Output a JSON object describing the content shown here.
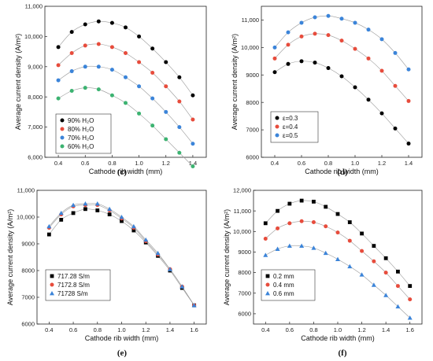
{
  "chart_data": [
    {
      "panel": "(c)",
      "type": "scatter",
      "xlabel": "Cathode rib width (mm)",
      "ylabel": "Average current density (A/m²)",
      "xlim": [
        0.3,
        1.5
      ],
      "ylim": [
        6000,
        11000
      ],
      "xticks": [
        "0.4",
        "0.6",
        "0.8",
        "1.0",
        "1.2",
        "1.4"
      ],
      "yticks": [
        "6,000",
        "7,000",
        "8,000",
        "9,000",
        "10,000",
        "11,000"
      ],
      "legend_position": "bottom-left",
      "x": [
        0.4,
        0.5,
        0.6,
        0.7,
        0.8,
        0.9,
        1.0,
        1.1,
        1.2,
        1.3,
        1.4
      ],
      "series": [
        {
          "name": "90% H₂O",
          "color": "#000000",
          "marker": "circle",
          "values": [
            9650,
            10150,
            10400,
            10500,
            10450,
            10300,
            10000,
            9600,
            9150,
            8650,
            8050
          ]
        },
        {
          "name": "80% H₂O",
          "color": "#e74c3c",
          "marker": "circle",
          "values": [
            9050,
            9450,
            9700,
            9750,
            9650,
            9450,
            9150,
            8800,
            8350,
            7850,
            7250
          ]
        },
        {
          "name": "70% H₂O",
          "color": "#3b84d9",
          "marker": "circle",
          "values": [
            8550,
            8850,
            9000,
            9000,
            8900,
            8650,
            8350,
            7950,
            7500,
            7000,
            6450
          ]
        },
        {
          "name": "60% H₂O",
          "color": "#3cb371",
          "marker": "circle",
          "values": [
            7950,
            8200,
            8300,
            8250,
            8050,
            7800,
            7450,
            7050,
            6600,
            6150,
            5700
          ]
        }
      ]
    },
    {
      "panel": "(d)",
      "type": "scatter",
      "xlabel": "Cathode rib width (mm)",
      "ylabel": "Average current density (A/m²)",
      "xlim": [
        0.3,
        1.5
      ],
      "ylim": [
        6000,
        11500
      ],
      "xticks": [
        "0.4",
        "0.6",
        "0.8",
        "1.0",
        "1.2",
        "1.4"
      ],
      "yticks": [
        "6000",
        "7000",
        "8000",
        "9000",
        "10,000",
        "11,000"
      ],
      "legend_position": "bottom-left",
      "x": [
        0.4,
        0.5,
        0.6,
        0.7,
        0.8,
        0.9,
        1.0,
        1.1,
        1.2,
        1.3,
        1.4
      ],
      "series": [
        {
          "name": "ε=0.3",
          "color": "#000000",
          "marker": "circle",
          "values": [
            9100,
            9400,
            9500,
            9450,
            9250,
            8950,
            8550,
            8100,
            7600,
            7050,
            6500
          ]
        },
        {
          "name": "ε=0.4",
          "color": "#e74c3c",
          "marker": "circle",
          "values": [
            9600,
            10100,
            10400,
            10500,
            10450,
            10250,
            9950,
            9600,
            9150,
            8600,
            8050
          ]
        },
        {
          "name": "ε=0.5",
          "color": "#3b84d9",
          "marker": "circle",
          "values": [
            10000,
            10550,
            10900,
            11100,
            11150,
            11050,
            10900,
            10650,
            10300,
            9800,
            9200
          ]
        }
      ]
    },
    {
      "panel": "(e)",
      "type": "scatter",
      "xlabel": "Cathode rib width (mm)",
      "ylabel": "Average current density (A/m²)",
      "xlim": [
        0.3,
        1.7
      ],
      "ylim": [
        6000,
        11000
      ],
      "xticks": [
        "0.4",
        "0.6",
        "0.8",
        "1.0",
        "1.2",
        "1.4",
        "1.6"
      ],
      "yticks": [
        "6000",
        "7000",
        "8000",
        "9000",
        "10,000",
        "11,000"
      ],
      "legend_position": "bottom-left",
      "x": [
        0.4,
        0.5,
        0.6,
        0.7,
        0.8,
        0.9,
        1.0,
        1.1,
        1.2,
        1.3,
        1.4,
        1.5,
        1.6
      ],
      "series": [
        {
          "name": "717.28 S/m",
          "color": "#000000",
          "marker": "square",
          "values": [
            9350,
            9900,
            10150,
            10300,
            10250,
            10100,
            9850,
            9500,
            9050,
            8550,
            8000,
            7350,
            6700
          ]
        },
        {
          "name": "7172.8 S/m",
          "color": "#e74c3c",
          "marker": "circle",
          "values": [
            9600,
            10100,
            10400,
            10450,
            10450,
            10250,
            9950,
            9600,
            9100,
            8600,
            8050,
            7400,
            6700
          ]
        },
        {
          "name": "71728 S/m",
          "color": "#3b84d9",
          "marker": "triangle",
          "values": [
            9650,
            10150,
            10450,
            10500,
            10500,
            10300,
            10000,
            9650,
            9150,
            8650,
            8050,
            7400,
            6700
          ]
        }
      ]
    },
    {
      "panel": "(f)",
      "type": "scatter",
      "xlabel": "Cathode rib width (mm)",
      "ylabel": "Average current density (A/m²)",
      "xlim": [
        0.3,
        1.7
      ],
      "ylim": [
        5500,
        12000
      ],
      "xticks": [
        "0.4",
        "0.6",
        "0.8",
        "1.0",
        "1.2",
        "1.4",
        "1.6"
      ],
      "yticks": [
        "6000",
        "7000",
        "8000",
        "9000",
        "10,000",
        "11,000",
        "12,000"
      ],
      "legend_position": "bottom-left",
      "x": [
        0.4,
        0.5,
        0.6,
        0.7,
        0.8,
        0.9,
        1.0,
        1.1,
        1.2,
        1.3,
        1.4,
        1.5,
        1.6
      ],
      "series": [
        {
          "name": "0.2 mm",
          "color": "#000000",
          "marker": "square",
          "values": [
            10400,
            11000,
            11350,
            11500,
            11450,
            11200,
            10850,
            10450,
            9900,
            9300,
            8700,
            8050,
            7350
          ]
        },
        {
          "name": "0.4 mm",
          "color": "#e74c3c",
          "marker": "circle",
          "values": [
            9650,
            10150,
            10400,
            10500,
            10450,
            10250,
            9950,
            9550,
            9050,
            8550,
            8000,
            7350,
            6700
          ]
        },
        {
          "name": "0.6 mm",
          "color": "#3b84d9",
          "marker": "triangle",
          "values": [
            8850,
            9150,
            9300,
            9300,
            9200,
            8950,
            8650,
            8300,
            7900,
            7400,
            6900,
            6350,
            5800
          ]
        }
      ]
    }
  ]
}
